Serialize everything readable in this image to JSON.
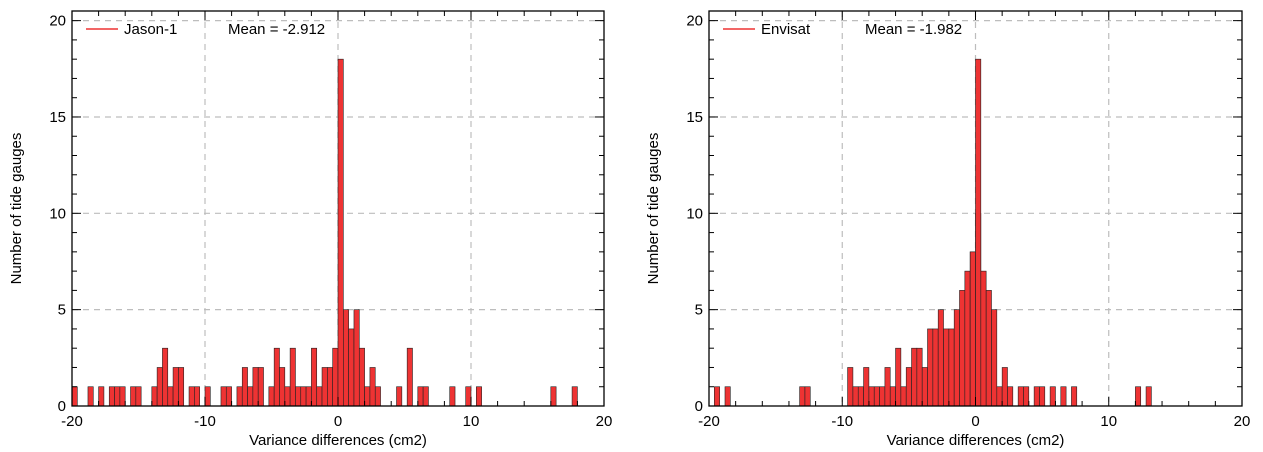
{
  "colors": {
    "bar_fill": "#ee3333",
    "bar_edge": "#222222",
    "grid": "#bdbdbd",
    "axis": "#000000",
    "legend_line": "#ee3333"
  },
  "chart_data": [
    {
      "type": "bar",
      "title": "",
      "xlabel": "Variance differences (cm2)",
      "ylabel": "Number of tide gauges",
      "xlim": [
        -20,
        20
      ],
      "ylim": [
        0,
        20.5
      ],
      "xticks": [
        -20,
        -10,
        0,
        10,
        20
      ],
      "yticks": [
        0,
        5,
        10,
        15,
        20
      ],
      "grid": true,
      "legend": {
        "label": "Jason-1",
        "mean_text": "Mean = -2.912",
        "placement": "top-left"
      },
      "bin_width": 0.4,
      "series": [
        {
          "name": "Jason-1",
          "bins": [
            [
              -20.0,
              1
            ],
            [
              -18.8,
              1
            ],
            [
              -18.0,
              1
            ],
            [
              -17.2,
              1
            ],
            [
              -16.8,
              1
            ],
            [
              -16.4,
              1
            ],
            [
              -15.6,
              1
            ],
            [
              -15.2,
              1
            ],
            [
              -14.0,
              1
            ],
            [
              -13.6,
              2
            ],
            [
              -13.2,
              3
            ],
            [
              -12.8,
              1
            ],
            [
              -12.4,
              2
            ],
            [
              -12.0,
              2
            ],
            [
              -11.2,
              1
            ],
            [
              -10.8,
              1
            ],
            [
              -10.0,
              1
            ],
            [
              -8.8,
              1
            ],
            [
              -8.4,
              1
            ],
            [
              -7.6,
              1
            ],
            [
              -7.2,
              2
            ],
            [
              -6.8,
              1
            ],
            [
              -6.4,
              2
            ],
            [
              -6.0,
              2
            ],
            [
              -5.2,
              1
            ],
            [
              -4.8,
              3
            ],
            [
              -4.4,
              2
            ],
            [
              -4.0,
              1
            ],
            [
              -3.6,
              3
            ],
            [
              -3.2,
              1
            ],
            [
              -2.8,
              1
            ],
            [
              -2.4,
              1
            ],
            [
              -2.0,
              3
            ],
            [
              -1.6,
              1
            ],
            [
              -1.2,
              2
            ],
            [
              -0.8,
              2
            ],
            [
              -0.4,
              3
            ],
            [
              0.0,
              18
            ],
            [
              0.4,
              5
            ],
            [
              0.8,
              4
            ],
            [
              1.2,
              5
            ],
            [
              1.6,
              3
            ],
            [
              2.0,
              1
            ],
            [
              2.4,
              2
            ],
            [
              2.8,
              1
            ],
            [
              4.4,
              1
            ],
            [
              5.2,
              3
            ],
            [
              6.0,
              1
            ],
            [
              6.4,
              1
            ],
            [
              8.4,
              1
            ],
            [
              9.6,
              1
            ],
            [
              10.4,
              1
            ],
            [
              16.0,
              1
            ],
            [
              17.6,
              1
            ]
          ]
        }
      ]
    },
    {
      "type": "bar",
      "title": "",
      "xlabel": "Variance differences (cm2)",
      "ylabel": "Number of tide gauges",
      "xlim": [
        -20,
        20
      ],
      "ylim": [
        0,
        20.5
      ],
      "xticks": [
        -20,
        -10,
        0,
        10,
        20
      ],
      "yticks": [
        0,
        5,
        10,
        15,
        20
      ],
      "grid": true,
      "legend": {
        "label": "Envisat",
        "mean_text": "Mean = -1.982",
        "placement": "top-left"
      },
      "bin_width": 0.4,
      "series": [
        {
          "name": "Envisat",
          "bins": [
            [
              -19.6,
              1
            ],
            [
              -18.8,
              1
            ],
            [
              -13.2,
              1
            ],
            [
              -12.8,
              1
            ],
            [
              -9.6,
              2
            ],
            [
              -9.2,
              1
            ],
            [
              -8.8,
              1
            ],
            [
              -8.4,
              2
            ],
            [
              -8.0,
              1
            ],
            [
              -7.6,
              1
            ],
            [
              -7.2,
              1
            ],
            [
              -6.8,
              2
            ],
            [
              -6.4,
              1
            ],
            [
              -6.0,
              3
            ],
            [
              -5.6,
              1
            ],
            [
              -5.2,
              2
            ],
            [
              -4.8,
              3
            ],
            [
              -4.4,
              3
            ],
            [
              -4.0,
              2
            ],
            [
              -3.6,
              4
            ],
            [
              -3.2,
              4
            ],
            [
              -2.8,
              5
            ],
            [
              -2.4,
              4
            ],
            [
              -2.0,
              4
            ],
            [
              -1.6,
              5
            ],
            [
              -1.2,
              6
            ],
            [
              -0.8,
              7
            ],
            [
              -0.4,
              8
            ],
            [
              -0.4,
              8
            ],
            [
              0.0,
              10
            ],
            [
              0.0,
              18
            ],
            [
              0.4,
              7
            ],
            [
              0.8,
              6
            ],
            [
              1.2,
              5
            ],
            [
              1.6,
              1
            ],
            [
              2.0,
              2
            ],
            [
              2.4,
              1
            ],
            [
              3.2,
              1
            ],
            [
              3.6,
              1
            ],
            [
              4.4,
              1
            ],
            [
              4.8,
              1
            ],
            [
              5.6,
              1
            ],
            [
              6.4,
              1
            ],
            [
              7.2,
              1
            ],
            [
              12.0,
              1
            ],
            [
              12.8,
              1
            ]
          ]
        }
      ]
    }
  ]
}
